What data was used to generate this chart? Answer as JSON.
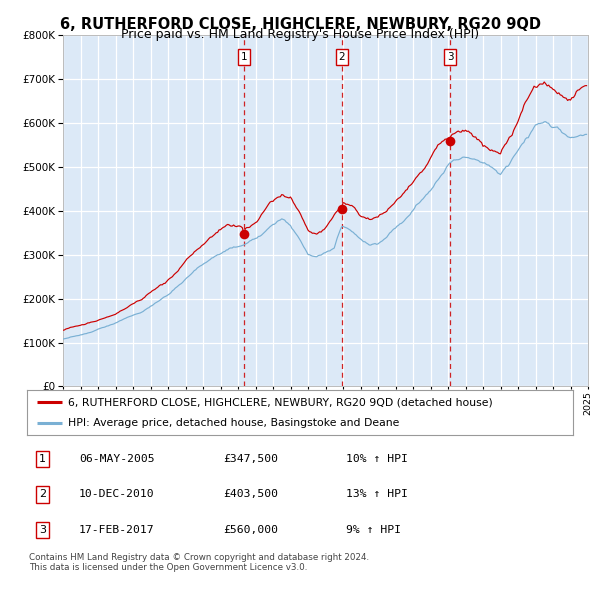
{
  "title": "6, RUTHERFORD CLOSE, HIGHCLERE, NEWBURY, RG20 9QD",
  "subtitle": "Price paid vs. HM Land Registry's House Price Index (HPI)",
  "red_label": "6, RUTHERFORD CLOSE, HIGHCLERE, NEWBURY, RG20 9QD (detached house)",
  "blue_label": "HPI: Average price, detached house, Basingstoke and Deane",
  "sales": [
    {
      "num": 1,
      "date": "06-MAY-2005",
      "price": 347500,
      "hpi_pct": "10%",
      "dir": "↑"
    },
    {
      "num": 2,
      "date": "10-DEC-2010",
      "price": 403500,
      "hpi_pct": "13%",
      "dir": "↑"
    },
    {
      "num": 3,
      "date": "17-FEB-2017",
      "price": 560000,
      "hpi_pct": "9%",
      "dir": "↑"
    }
  ],
  "sale_years": [
    2005.35,
    2010.94,
    2017.12
  ],
  "sale_prices": [
    347500,
    403500,
    560000
  ],
  "footer": "Contains HM Land Registry data © Crown copyright and database right 2024.\nThis data is licensed under the Open Government Licence v3.0.",
  "ylim": [
    0,
    800000
  ],
  "xlim_start": 1995,
  "xlim_end": 2025,
  "bg_color": "#dce9f7",
  "plot_bg": "#dce9f7",
  "grid_color": "#ffffff",
  "red_color": "#cc0000",
  "blue_color": "#7ab0d4",
  "vline_color": "#cc0000",
  "title_fontsize": 10.5,
  "subtitle_fontsize": 9
}
